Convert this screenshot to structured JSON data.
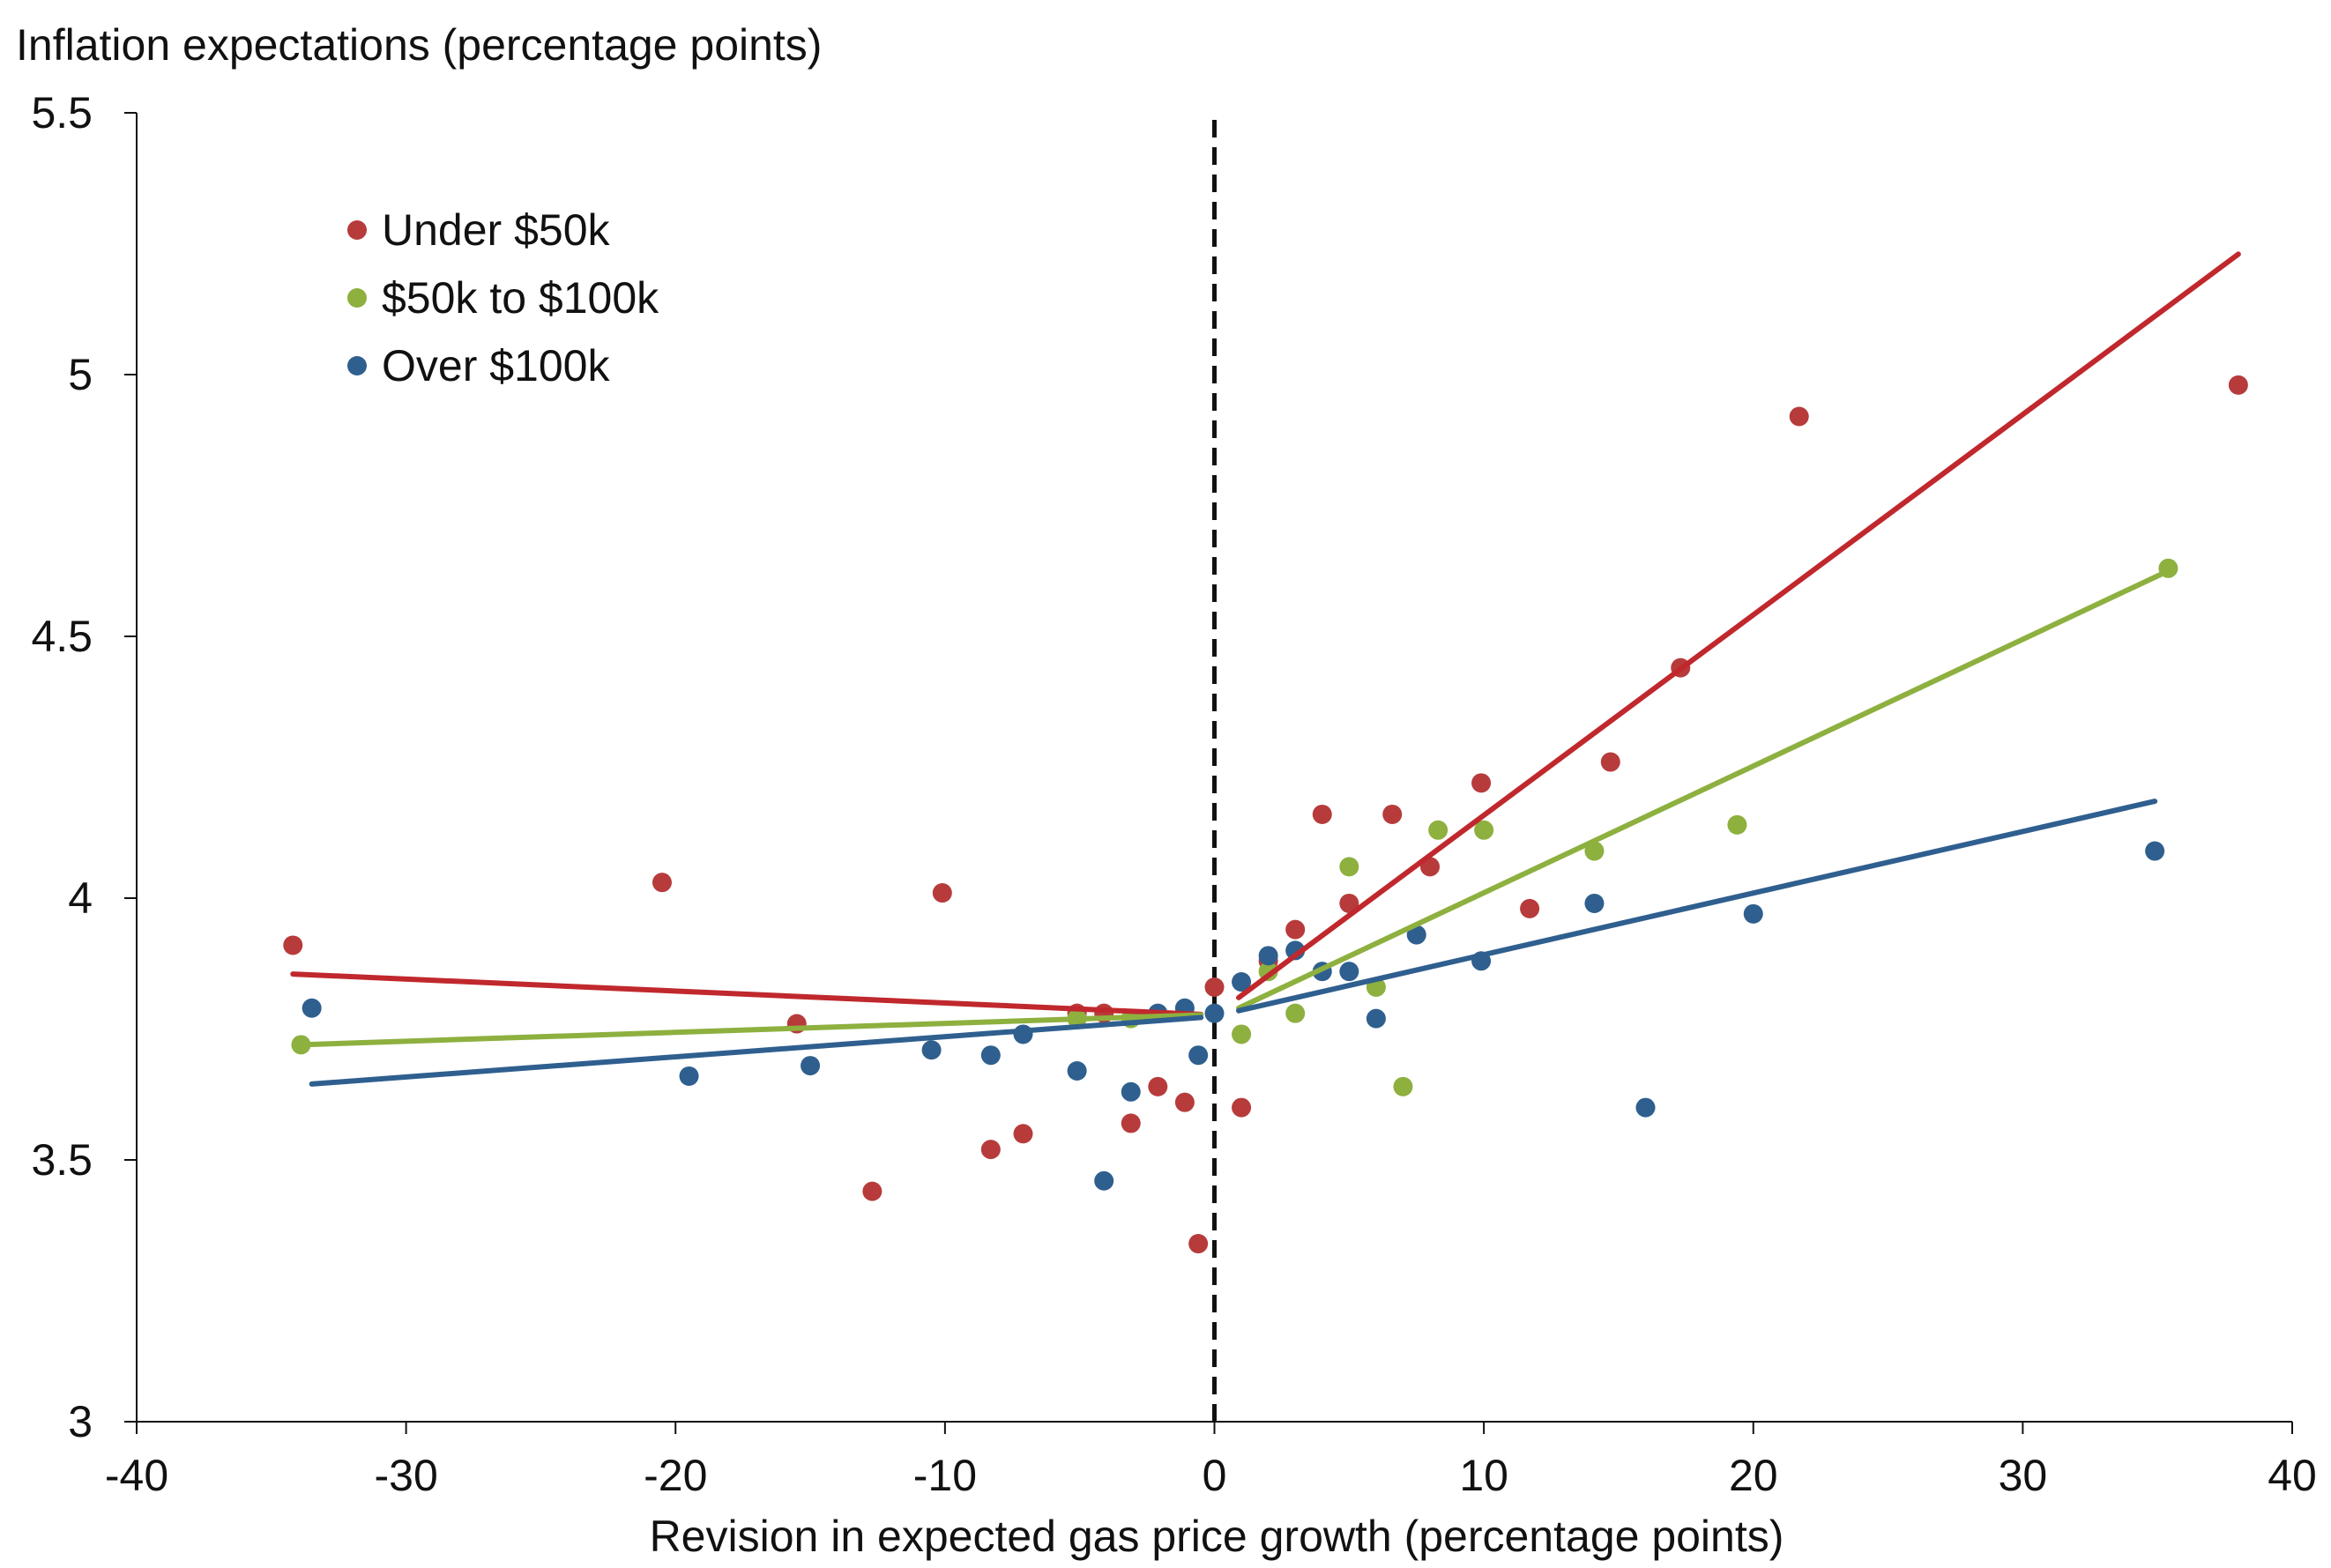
{
  "chart_data": {
    "type": "scatter",
    "title": "",
    "ylabel": "Inflation expectations (percentage points)",
    "xlabel": "Revision in expected gas price growth (percentage points)",
    "xlim": [
      -40,
      40
    ],
    "ylim": [
      3,
      5.5
    ],
    "x_ticks": [
      -40,
      -30,
      -20,
      -10,
      0,
      10,
      20,
      30,
      40
    ],
    "x_tick_labels": [
      "-40",
      "-30",
      "-20",
      "-10",
      "0",
      "10",
      "20",
      "30",
      "40"
    ],
    "y_ticks": [
      3,
      3.5,
      4,
      4.5,
      5,
      5.5
    ],
    "y_tick_labels": [
      "3",
      "3.5",
      "4",
      "4.5",
      "5",
      "5.5"
    ],
    "grid": false,
    "legend_position": "top-left",
    "reference_line": {
      "x": 0,
      "style": "dashed",
      "color": "#111111"
    },
    "series": [
      {
        "name": "Under $50k",
        "color": "#b73b3b",
        "line_color": "#c0282d",
        "points": [
          [
            -34.2,
            3.91
          ],
          [
            -20.5,
            4.03
          ],
          [
            -15.5,
            3.76
          ],
          [
            -12.7,
            3.44
          ],
          [
            -10.1,
            4.01
          ],
          [
            -8.3,
            3.52
          ],
          [
            -7.1,
            3.55
          ],
          [
            -5.1,
            3.78
          ],
          [
            -4.1,
            3.78
          ],
          [
            -3.1,
            3.57
          ],
          [
            -2.1,
            3.64
          ],
          [
            -1.1,
            3.61
          ],
          [
            -0.6,
            3.34
          ],
          [
            0.0,
            3.83
          ],
          [
            1.0,
            3.6
          ],
          [
            2.0,
            3.88
          ],
          [
            3.0,
            3.94
          ],
          [
            4.0,
            4.16
          ],
          [
            5.0,
            3.99
          ],
          [
            6.6,
            4.16
          ],
          [
            8.0,
            4.06
          ],
          [
            9.9,
            4.22
          ],
          [
            11.7,
            3.98
          ],
          [
            14.7,
            4.26
          ],
          [
            17.3,
            4.44
          ],
          [
            21.7,
            4.92
          ],
          [
            38.0,
            4.98
          ]
        ],
        "fit_negative": {
          "x": [
            -34.2,
            -0.5
          ],
          "y": [
            3.855,
            3.778
          ]
        },
        "fit_positive": {
          "x": [
            0.9,
            38.0
          ],
          "y": [
            3.81,
            5.23
          ]
        }
      },
      {
        "name": "$50k to $100k",
        "color": "#8db03f",
        "line_color": "#8db03f",
        "points": [
          [
            -33.9,
            3.72
          ],
          [
            -5.1,
            3.77
          ],
          [
            -3.1,
            3.77
          ],
          [
            1.0,
            3.74
          ],
          [
            2.0,
            3.86
          ],
          [
            3.0,
            3.78
          ],
          [
            5.0,
            4.06
          ],
          [
            6.0,
            3.83
          ],
          [
            7.0,
            3.64
          ],
          [
            8.3,
            4.13
          ],
          [
            10.0,
            4.13
          ],
          [
            14.1,
            4.09
          ],
          [
            19.4,
            4.14
          ],
          [
            35.4,
            4.63
          ]
        ],
        "fit_negative": {
          "x": [
            -33.9,
            -0.5
          ],
          "y": [
            3.72,
            3.777
          ]
        },
        "fit_positive": {
          "x": [
            0.9,
            35.4
          ],
          "y": [
            3.79,
            4.625
          ]
        }
      },
      {
        "name": "Over $100k",
        "color": "#2f5f8f",
        "line_color": "#2f5f8f",
        "points": [
          [
            -33.5,
            3.79
          ],
          [
            -19.5,
            3.66
          ],
          [
            -15.0,
            3.68
          ],
          [
            -10.5,
            3.71
          ],
          [
            -8.3,
            3.7
          ],
          [
            -7.1,
            3.74
          ],
          [
            -5.1,
            3.67
          ],
          [
            -4.1,
            3.46
          ],
          [
            -3.1,
            3.63
          ],
          [
            -2.1,
            3.78
          ],
          [
            -1.1,
            3.79
          ],
          [
            -0.6,
            3.7
          ],
          [
            0.0,
            3.78
          ],
          [
            1.0,
            3.84
          ],
          [
            2.0,
            3.89
          ],
          [
            3.0,
            3.9
          ],
          [
            4.0,
            3.86
          ],
          [
            5.0,
            3.86
          ],
          [
            6.0,
            3.77
          ],
          [
            7.5,
            3.93
          ],
          [
            9.9,
            3.88
          ],
          [
            14.1,
            3.99
          ],
          [
            16.0,
            3.6
          ],
          [
            20.0,
            3.97
          ],
          [
            34.9,
            4.09
          ]
        ],
        "fit_negative": {
          "x": [
            -33.5,
            -0.5
          ],
          "y": [
            3.645,
            3.772
          ]
        },
        "fit_positive": {
          "x": [
            0.9,
            34.9
          ],
          "y": [
            3.785,
            4.185
          ]
        }
      }
    ]
  }
}
